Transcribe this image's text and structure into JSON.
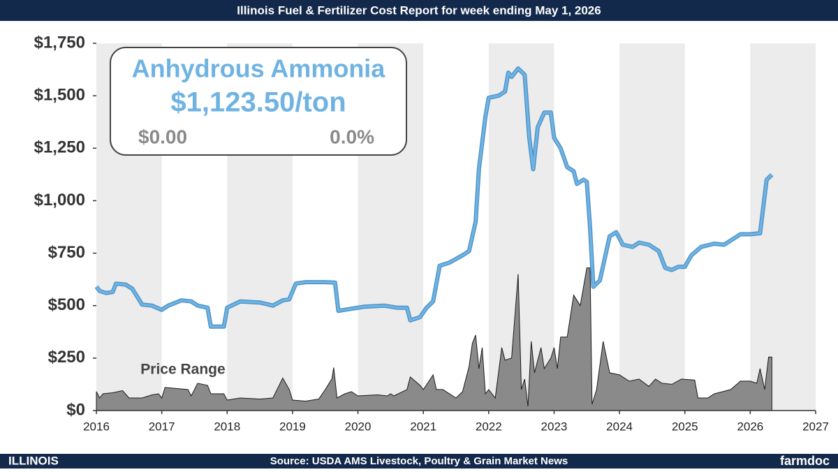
{
  "chart_data": {
    "type": "line",
    "title": "Illinois Fuel & Fertilizer Cost Report for week ending May 1, 2026",
    "product": "Anhydrous Ammonia",
    "price_label": "$1,123.50/ton",
    "change_label": "$0.00",
    "change_pct_label": "0.0%",
    "source": "Source: USDA AMS Livestock, Poultry & Grain Market News",
    "logo_left": "ILLINOIS",
    "logo_right": "farmdoc",
    "xlim": [
      2016,
      2027
    ],
    "xticks": [
      2016,
      2017,
      2018,
      2019,
      2020,
      2021,
      2022,
      2023,
      2024,
      2025,
      2026,
      2027
    ],
    "ylim": [
      0,
      1750
    ],
    "yticks": [
      {
        "value": 0,
        "label": "$0"
      },
      {
        "value": 250,
        "label": "$250"
      },
      {
        "value": 500,
        "label": "$500"
      },
      {
        "value": 750,
        "label": "$750"
      },
      {
        "value": 1000,
        "label": "$1,000"
      },
      {
        "value": 1250,
        "label": "$1,250"
      },
      {
        "value": 1500,
        "label": "$1,500"
      },
      {
        "value": 1750,
        "label": "$1,750"
      }
    ],
    "year_bands": true,
    "series": [
      {
        "type": "line",
        "color": "#6fb3e3",
        "x": [
          2016.0,
          2016.05,
          2016.15,
          2016.25,
          2016.3,
          2016.45,
          2016.55,
          2016.7,
          2016.85,
          2017.0,
          2017.1,
          2017.3,
          2017.45,
          2017.55,
          2017.7,
          2017.75,
          2017.95,
          2018.0,
          2018.2,
          2018.5,
          2018.7,
          2018.85,
          2018.95,
          2019.05,
          2019.2,
          2019.5,
          2019.65,
          2019.7,
          2019.9,
          2020.1,
          2020.4,
          2020.6,
          2020.75,
          2020.8,
          2020.95,
          2021.05,
          2021.15,
          2021.25,
          2021.4,
          2021.6,
          2021.7,
          2021.8,
          2021.85,
          2021.95,
          2022.0,
          2022.15,
          2022.25,
          2022.3,
          2022.35,
          2022.45,
          2022.55,
          2022.62,
          2022.68,
          2022.75,
          2022.85,
          2022.95,
          2023.0,
          2023.1,
          2023.2,
          2023.3,
          2023.35,
          2023.45,
          2023.5,
          2023.55,
          2023.6,
          2023.7,
          2023.85,
          2023.95,
          2024.05,
          2024.2,
          2024.3,
          2024.45,
          2024.6,
          2024.7,
          2024.8,
          2024.9,
          2025.0,
          2025.1,
          2025.25,
          2025.45,
          2025.6,
          2025.7,
          2025.85,
          2026.0,
          2026.15,
          2026.25,
          2026.33
        ],
        "values": [
          590,
          570,
          560,
          565,
          605,
          600,
          580,
          505,
          500,
          480,
          500,
          525,
          520,
          500,
          490,
          400,
          400,
          490,
          520,
          515,
          500,
          525,
          530,
          605,
          612,
          612,
          610,
          475,
          485,
          495,
          500,
          490,
          490,
          430,
          445,
          490,
          520,
          690,
          705,
          740,
          760,
          900,
          1150,
          1400,
          1490,
          1500,
          1520,
          1610,
          1590,
          1630,
          1600,
          1300,
          1150,
          1350,
          1420,
          1420,
          1300,
          1250,
          1160,
          1140,
          1080,
          1100,
          1090,
          870,
          590,
          620,
          830,
          850,
          790,
          780,
          800,
          790,
          760,
          680,
          670,
          685,
          685,
          740,
          780,
          795,
          790,
          810,
          840,
          840,
          845,
          1100,
          1123.5
        ]
      },
      {
        "type": "area",
        "name": "Price Range",
        "color": "#8a8a8a",
        "x": [
          2016.0,
          2016.05,
          2016.1,
          2016.25,
          2016.4,
          2016.5,
          2016.7,
          2016.85,
          2016.95,
          2017.0,
          2017.05,
          2017.4,
          2017.45,
          2017.55,
          2017.7,
          2017.75,
          2017.95,
          2018.0,
          2018.2,
          2018.5,
          2018.7,
          2018.85,
          2018.95,
          2019.0,
          2019.2,
          2019.4,
          2019.5,
          2019.6,
          2019.63,
          2019.68,
          2019.8,
          2019.9,
          2020.0,
          2020.3,
          2020.45,
          2020.5,
          2020.55,
          2020.75,
          2020.8,
          2020.95,
          2021.0,
          2021.15,
          2021.2,
          2021.3,
          2021.5,
          2021.6,
          2021.7,
          2021.75,
          2021.8,
          2021.85,
          2021.9,
          2021.95,
          2022.0,
          2022.1,
          2022.2,
          2022.25,
          2022.35,
          2022.45,
          2022.5,
          2022.55,
          2022.6,
          2022.65,
          2022.7,
          2022.8,
          2022.85,
          2022.95,
          2023.0,
          2023.05,
          2023.1,
          2023.2,
          2023.3,
          2023.4,
          2023.5,
          2023.55,
          2023.58,
          2023.65,
          2023.75,
          2023.85,
          2024.0,
          2024.15,
          2024.3,
          2024.45,
          2024.55,
          2024.65,
          2024.8,
          2024.95,
          2025.15,
          2025.2,
          2025.35,
          2025.45,
          2025.7,
          2025.85,
          2026.0,
          2026.1,
          2026.15,
          2026.22,
          2026.28,
          2026.33
        ],
        "values": [
          90,
          60,
          80,
          85,
          95,
          60,
          60,
          75,
          80,
          60,
          110,
          100,
          70,
          130,
          120,
          80,
          80,
          50,
          60,
          55,
          60,
          155,
          100,
          50,
          45,
          55,
          100,
          150,
          205,
          60,
          80,
          90,
          70,
          75,
          70,
          80,
          70,
          100,
          160,
          120,
          100,
          170,
          100,
          100,
          60,
          90,
          210,
          320,
          360,
          200,
          300,
          80,
          100,
          60,
          300,
          240,
          250,
          650,
          100,
          150,
          20,
          330,
          180,
          300,
          200,
          250,
          300,
          200,
          350,
          350,
          550,
          500,
          680,
          680,
          30,
          100,
          330,
          180,
          170,
          140,
          150,
          115,
          150,
          130,
          125,
          150,
          145,
          60,
          60,
          80,
          100,
          140,
          140,
          130,
          200,
          100,
          255,
          255
        ]
      }
    ]
  }
}
